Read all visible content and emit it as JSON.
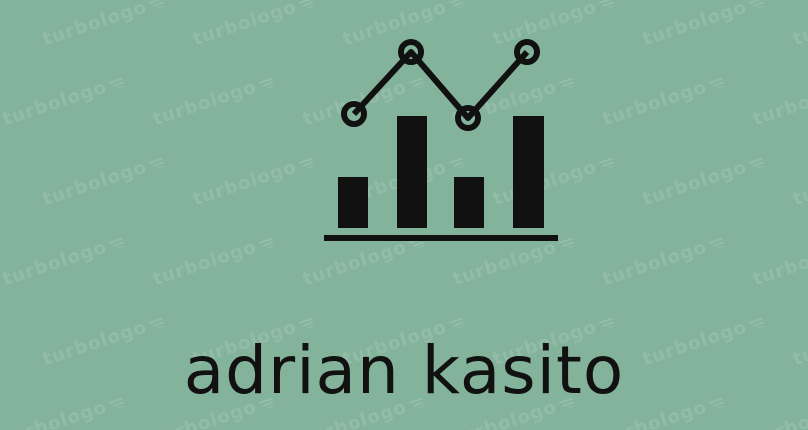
{
  "logo": {
    "brand_name": "adrian kasito",
    "icon": "bar-line-chart-icon",
    "background_color": "#84b39b",
    "ink_color": "#111111"
  },
  "watermark": {
    "text": "turbologo",
    "color": "rgba(255,255,255,0.13)"
  }
}
